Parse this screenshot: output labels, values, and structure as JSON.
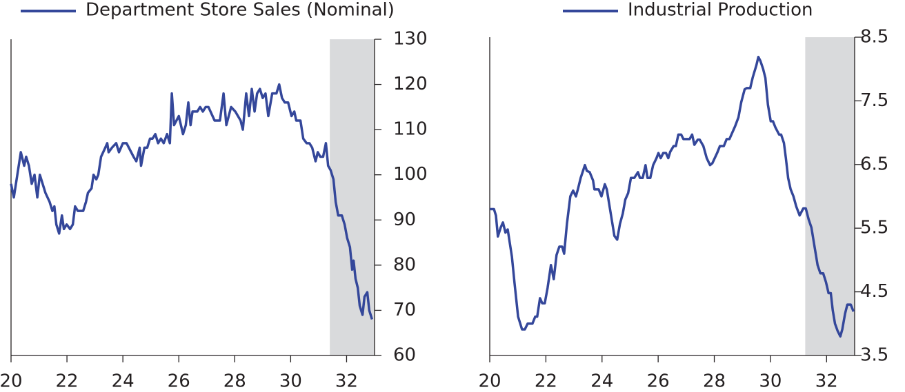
{
  "chart_data": [
    {
      "type": "line",
      "x": [
        20,
        20.1,
        20.2,
        20.35,
        20.47,
        20.54,
        20.64,
        20.74,
        20.84,
        20.94,
        21.03,
        21.23,
        21.38,
        21.48,
        21.55,
        21.62,
        21.72,
        21.82,
        21.89,
        21.99,
        22.11,
        22.21,
        22.29,
        22.39,
        22.58,
        22.68,
        22.75,
        22.88,
        22.95,
        23.05,
        23.12,
        23.22,
        23.37,
        23.44,
        23.49,
        23.61,
        23.76,
        23.86,
        24.0,
        24.13,
        24.38,
        24.48,
        24.6,
        24.65,
        24.77,
        24.87,
        24.97,
        25.06,
        25.16,
        25.26,
        25.36,
        25.46,
        25.58,
        25.68,
        25.75,
        25.83,
        26.0,
        26.15,
        26.25,
        26.34,
        26.42,
        26.49,
        26.66,
        26.76,
        26.86,
        26.96,
        27.06,
        27.28,
        27.47,
        27.6,
        27.7,
        27.87,
        28.02,
        28.21,
        28.29,
        28.41,
        28.51,
        28.61,
        28.71,
        28.8,
        28.9,
        29.0,
        29.1,
        29.2,
        29.34,
        29.49,
        29.59,
        29.69,
        29.79,
        29.91,
        30.03,
        30.13,
        30.2,
        30.35,
        30.45,
        30.57,
        30.67,
        30.77,
        30.89,
        30.97,
        31.06,
        31.16,
        31.26,
        31.34,
        31.43,
        31.53,
        31.61,
        31.7,
        31.83,
        31.93,
        32.02,
        32.12,
        32.2,
        32.25,
        32.32,
        32.4,
        32.47,
        32.57,
        32.64,
        32.74,
        32.81,
        32.91
      ],
      "series": [
        {
          "name": "Department Store Sales (Nominal)",
          "color": "#34479a",
          "values": [
            98,
            95,
            99,
            105,
            102,
            104,
            102,
            98,
            100,
            95,
            100,
            96,
            94,
            92,
            93,
            89,
            87,
            91,
            88,
            89,
            88,
            89,
            93,
            92,
            92,
            94,
            96,
            97,
            100,
            99,
            100,
            104,
            106,
            107,
            105,
            106,
            107,
            105,
            107,
            107,
            104,
            103,
            106,
            102,
            106,
            106,
            108,
            108,
            109,
            107,
            108,
            107,
            109,
            107,
            118,
            111,
            113,
            109,
            111,
            116,
            111,
            114,
            114,
            115,
            114,
            115,
            115,
            112,
            112,
            118,
            111,
            115,
            114,
            112,
            110,
            118,
            113,
            119,
            114,
            118,
            119,
            117,
            118,
            113,
            118,
            118,
            120,
            117,
            116,
            116,
            113,
            114,
            112,
            112,
            108,
            107,
            107,
            106,
            103,
            105,
            104,
            104,
            107,
            102,
            101,
            99,
            94,
            91,
            91,
            89,
            86,
            84,
            79,
            81,
            77,
            75,
            71,
            69,
            73,
            74,
            70,
            68
          ]
        }
      ],
      "xlim": [
        20,
        33
      ],
      "xticks": [
        20,
        22,
        24,
        26,
        28,
        30,
        32
      ],
      "ylim": [
        60,
        130
      ],
      "yticks": [
        60,
        70,
        80,
        90,
        100,
        110,
        120,
        130
      ],
      "shaded_region": [
        31.4,
        33
      ],
      "shade_color": "#d9dadc"
    },
    {
      "type": "line",
      "x": [
        20,
        20.15,
        20.22,
        20.29,
        20.39,
        20.47,
        20.56,
        20.64,
        20.79,
        20.88,
        21.01,
        21.15,
        21.25,
        21.35,
        21.52,
        21.62,
        21.69,
        21.79,
        21.87,
        21.96,
        22.06,
        22.18,
        22.28,
        22.38,
        22.48,
        22.58,
        22.65,
        22.75,
        22.87,
        22.97,
        23.07,
        23.14,
        23.24,
        23.39,
        23.46,
        23.56,
        23.68,
        23.73,
        23.88,
        23.98,
        24.1,
        24.17,
        24.27,
        24.37,
        24.44,
        24.54,
        24.64,
        24.74,
        24.83,
        24.93,
        25.03,
        25.15,
        25.28,
        25.35,
        25.45,
        25.55,
        25.62,
        25.72,
        25.82,
        25.94,
        26.01,
        26.09,
        26.18,
        26.28,
        26.36,
        26.43,
        26.55,
        26.63,
        26.72,
        26.82,
        26.9,
        27.04,
        27.12,
        27.21,
        27.29,
        27.41,
        27.48,
        27.61,
        27.73,
        27.85,
        27.93,
        28.1,
        28.2,
        28.34,
        28.44,
        28.54,
        28.64,
        28.74,
        28.86,
        28.96,
        29.08,
        29.15,
        29.28,
        29.37,
        29.5,
        29.57,
        29.64,
        29.74,
        29.82,
        29.91,
        30.01,
        30.09,
        30.18,
        30.31,
        30.38,
        30.48,
        30.55,
        30.63,
        30.72,
        30.82,
        30.92,
        31.04,
        31.17,
        31.26,
        31.36,
        31.46,
        31.56,
        31.68,
        31.78,
        31.88,
        31.98,
        32.07,
        32.15,
        32.22,
        32.3,
        32.39,
        32.49,
        32.56,
        32.66,
        32.74,
        32.86,
        32.96
      ],
      "series": [
        {
          "name": "Industrial Production",
          "color": "#34479a",
          "values": [
            5.8,
            5.8,
            5.7,
            5.37,
            5.51,
            5.59,
            5.43,
            5.48,
            5.05,
            4.65,
            4.11,
            3.91,
            3.91,
            4.0,
            4.0,
            4.11,
            4.11,
            4.4,
            4.32,
            4.32,
            4.56,
            4.92,
            4.7,
            5.08,
            5.21,
            5.21,
            5.1,
            5.57,
            6.0,
            6.09,
            6.0,
            6.11,
            6.29,
            6.49,
            6.4,
            6.38,
            6.25,
            6.11,
            6.11,
            6.0,
            6.19,
            6.11,
            5.84,
            5.57,
            5.38,
            5.32,
            5.57,
            5.73,
            5.95,
            6.05,
            6.29,
            6.29,
            6.38,
            6.29,
            6.29,
            6.49,
            6.29,
            6.29,
            6.49,
            6.6,
            6.68,
            6.6,
            6.68,
            6.68,
            6.6,
            6.7,
            6.79,
            6.79,
            6.97,
            6.97,
            6.9,
            6.9,
            6.9,
            6.97,
            6.81,
            6.89,
            6.89,
            6.79,
            6.6,
            6.49,
            6.52,
            6.68,
            6.79,
            6.79,
            6.9,
            6.9,
            7.0,
            7.1,
            7.24,
            7.48,
            7.68,
            7.7,
            7.7,
            7.87,
            8.06,
            8.19,
            8.13,
            8.0,
            7.86,
            7.44,
            7.18,
            7.18,
            7.08,
            6.97,
            6.97,
            6.84,
            6.6,
            6.29,
            6.11,
            6.0,
            5.84,
            5.7,
            5.81,
            5.81,
            5.64,
            5.51,
            5.24,
            4.92,
            4.79,
            4.79,
            4.65,
            4.48,
            4.48,
            4.21,
            4.0,
            3.89,
            3.8,
            3.91,
            4.16,
            4.3,
            4.3,
            4.19
          ]
        }
      ],
      "xlim": [
        20,
        33
      ],
      "xticks": [
        20,
        22,
        24,
        26,
        28,
        30,
        32
      ],
      "ylim": [
        3.5,
        8.5
      ],
      "yticks": [
        3.5,
        4.5,
        5.5,
        6.5,
        7.5,
        8.5
      ],
      "shaded_region": [
        31.24,
        33
      ],
      "shade_color": "#d9dadc"
    }
  ]
}
